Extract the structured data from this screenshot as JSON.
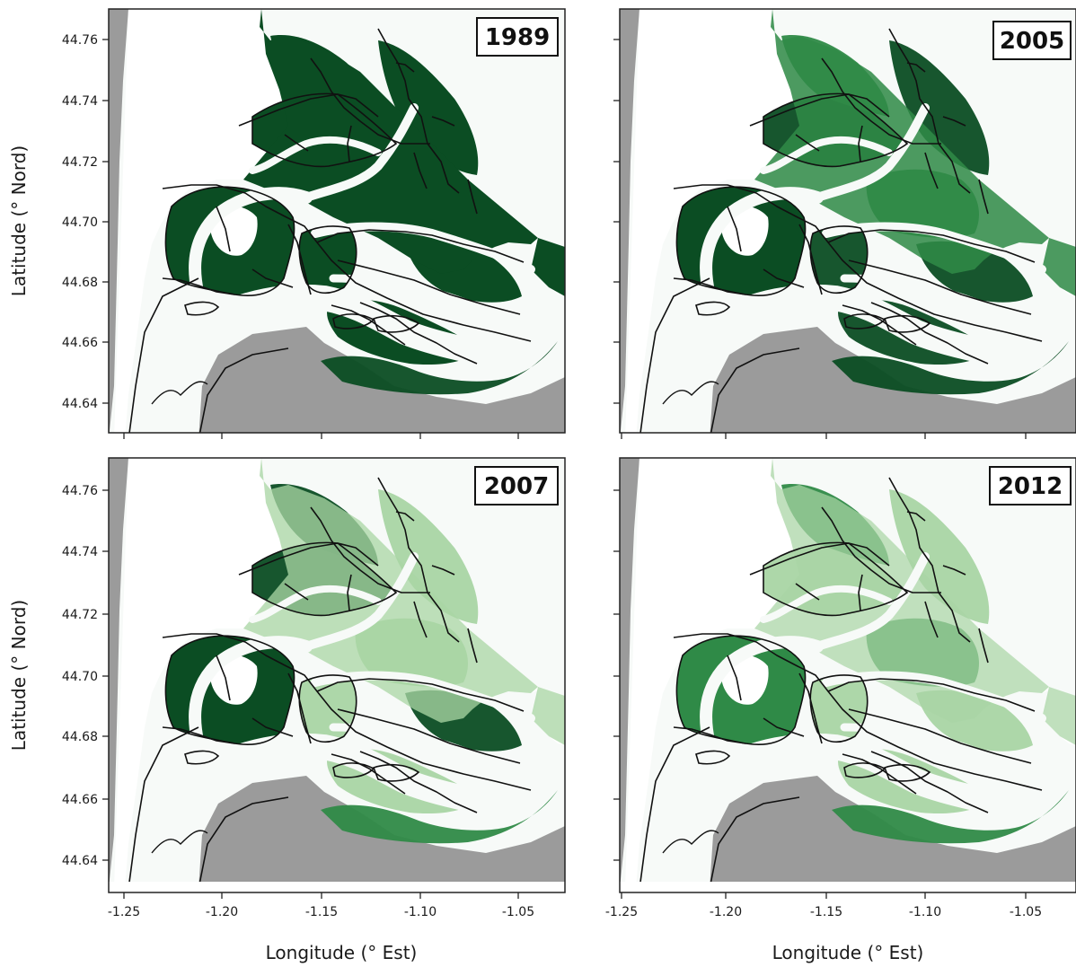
{
  "figure": {
    "panels": [
      {
        "year": "1989",
        "intensity": 1.0
      },
      {
        "year": "2005",
        "intensity": 0.78
      },
      {
        "year": "2007",
        "intensity": 0.55
      },
      {
        "year": "2012",
        "intensity": 0.45
      }
    ],
    "x_axis": {
      "label": "Longitude (° Est)",
      "ticks": [
        "-1.25",
        "-1.20",
        "-1.15",
        "-1.10",
        "-1.05"
      ]
    },
    "y_axis": {
      "label": "Latitude (° Nord)",
      "ticks": [
        "44.76",
        "44.74",
        "44.72",
        "44.70",
        "44.68",
        "44.66",
        "44.64"
      ]
    },
    "colors": {
      "land": "#9b9b9b",
      "water": "#f7faf8",
      "dense_vegetation": "#0b4d23",
      "medium_vegetation": "#2f8a47",
      "light_vegetation": "#a9d5a4",
      "channel_outline": "#111111"
    }
  }
}
